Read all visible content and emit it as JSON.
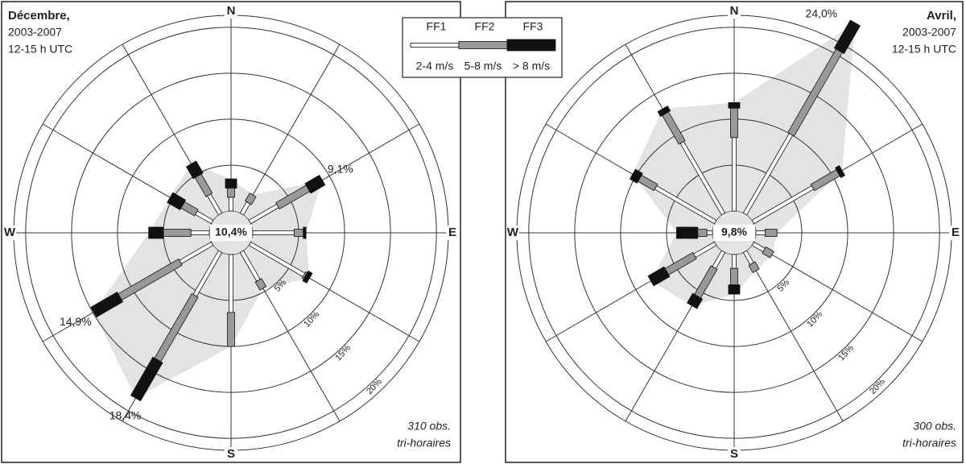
{
  "legend": {
    "ranges": [
      "2-4 m/s",
      "5-8 m/s",
      "> 8 m/s"
    ]
  },
  "chart_data": [
    {
      "type": "windrose",
      "title": "Décembre,",
      "subtitle": [
        "2003-2007",
        "12-15 h UTC"
      ],
      "note": [
        "310 obs.",
        "tri-horaires"
      ],
      "categories": [
        "N",
        null,
        null,
        "E",
        null,
        null,
        "S",
        null,
        null,
        "W",
        null,
        null
      ],
      "rlim": [
        0,
        21.3
      ],
      "rticks": [
        {
          "value": 5,
          "label": "5%"
        },
        {
          "value": 10,
          "label": "10%"
        },
        {
          "value": 15,
          "label": "15%"
        },
        {
          "value": 20,
          "label": "20%"
        }
      ],
      "calm": {
        "value": 10.4,
        "label": "10,4%"
      },
      "series": [
        {
          "name": "FF1",
          "color": "#ffffff",
          "values": [
            1.5,
            1.4,
            3.5,
            4.5,
            6.8,
            3.6,
            6.3,
            5.5,
            4.0,
            2.0,
            2.0,
            2.4
          ]
        },
        {
          "name": "FF2",
          "color": "#999999",
          "values": [
            1.0,
            1.0,
            3.8,
            1.0,
            0.2,
            1.0,
            3.7,
            8.1,
            7.6,
            3.0,
            1.7,
            2.4
          ]
        },
        {
          "name": "FF3",
          "color": "#111111",
          "values": [
            1.0,
            0,
            1.8,
            0.3,
            0.5,
            0,
            0,
            4.8,
            3.3,
            1.6,
            1.6,
            1.5
          ]
        }
      ],
      "annotations": [
        {
          "label": "9,1%",
          "value": 9.1,
          "index": 2
        },
        {
          "label": "14,9%",
          "value": 14.9,
          "index": 8
        },
        {
          "label": "18,4%",
          "value": 18.4,
          "index": 7
        }
      ]
    },
    {
      "type": "windrose",
      "title": "Avril,",
      "subtitle": [
        "2003-2007",
        "12-15 h UTC"
      ],
      "note": [
        "300 obs.",
        "tri-horaires"
      ],
      "categories": [
        "N",
        null,
        null,
        "E",
        null,
        null,
        "S",
        null,
        null,
        "W",
        null,
        null
      ],
      "rlim": [
        0,
        21.3
      ],
      "rticks": [
        {
          "value": 5,
          "label": "5%"
        },
        {
          "value": 10,
          "label": "10%"
        },
        {
          "value": 15,
          "label": "15%"
        },
        {
          "value": 20,
          "label": "20%"
        }
      ],
      "calm": {
        "value": 9.8,
        "label": "9,8%"
      },
      "series": [
        {
          "name": "FF1",
          "color": "#ffffff",
          "values": [
            8.0,
            10.0,
            7.5,
            1.0,
            1.4,
            1.5,
            1.5,
            2.0,
            2.6,
            0.6,
            7.5,
            9.0
          ]
        },
        {
          "name": "FF2",
          "color": "#999999",
          "values": [
            3.2,
            10.5,
            3.2,
            1.3,
            1.0,
            0.9,
            1.8,
            3.6,
            3.5,
            1.0,
            2.0,
            3.6
          ]
        },
        {
          "name": "FF3",
          "color": "#111111",
          "values": [
            0.6,
            3.5,
            0.5,
            0,
            0,
            0,
            1.0,
            1.2,
            2.0,
            2.3,
            0.9,
            0.6
          ]
        }
      ],
      "annotations": [
        {
          "label": "24,0%",
          "value": 24.0,
          "index": 1
        }
      ]
    }
  ]
}
